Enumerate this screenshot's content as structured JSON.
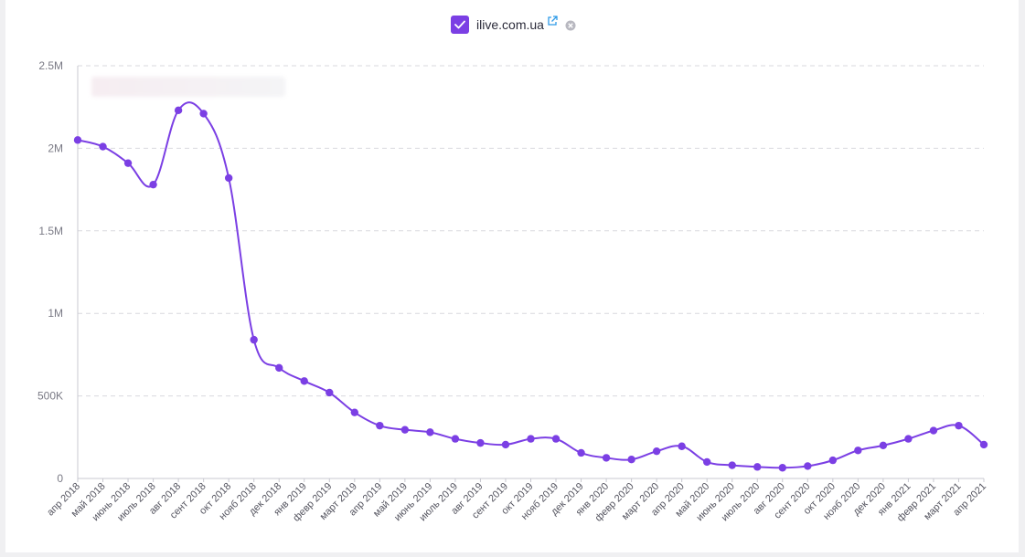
{
  "legend": {
    "label": "ilive.com.ua",
    "checked": true,
    "accent": "#7b3fe4",
    "icons": [
      "checkmark-icon",
      "external-link-icon",
      "remove-icon"
    ]
  },
  "chart_data": {
    "type": "line",
    "title": "",
    "xlabel": "",
    "ylabel": "",
    "ylim": [
      0,
      2500000
    ],
    "yticks": [
      {
        "value": 0,
        "label": "0"
      },
      {
        "value": 500000,
        "label": "500K"
      },
      {
        "value": 1000000,
        "label": "1M"
      },
      {
        "value": 1500000,
        "label": "1.5M"
      },
      {
        "value": 2000000,
        "label": "2M"
      },
      {
        "value": 2500000,
        "label": "2.5M"
      }
    ],
    "grid": true,
    "color": "#7b3fe4",
    "categories": [
      "апр 2018",
      "май 2018",
      "июнь 2018",
      "июль 2018",
      "авг 2018",
      "сент 2018",
      "окт 2018",
      "нояб 2018",
      "дек 2018",
      "янв 2019",
      "февр 2019",
      "март 2019",
      "апр 2019",
      "май 2019",
      "июнь 2019",
      "июль 2019",
      "авг 2019",
      "сент 2019",
      "окт 2019",
      "нояб 2019",
      "дек 2019",
      "янв 2020",
      "февр 2020",
      "март 2020",
      "апр 2020",
      "май 2020",
      "июнь 2020",
      "июль 2020",
      "авг 2020",
      "сент 2020",
      "окт 2020",
      "нояб 2020",
      "дек 2020",
      "янв 2021",
      "февр 2021",
      "март 2021",
      "апр 2021"
    ],
    "series": [
      {
        "values": [
          2050000,
          2010000,
          1910000,
          1780000,
          2230000,
          2210000,
          1820000,
          840000,
          670000,
          590000,
          520000,
          400000,
          320000,
          295000,
          280000,
          240000,
          215000,
          205000,
          240000,
          240000,
          155000,
          125000,
          115000,
          165000,
          195000,
          100000,
          80000,
          70000,
          65000,
          75000,
          110000,
          170000,
          200000,
          240000,
          290000,
          320000,
          205000
        ]
      }
    ]
  }
}
